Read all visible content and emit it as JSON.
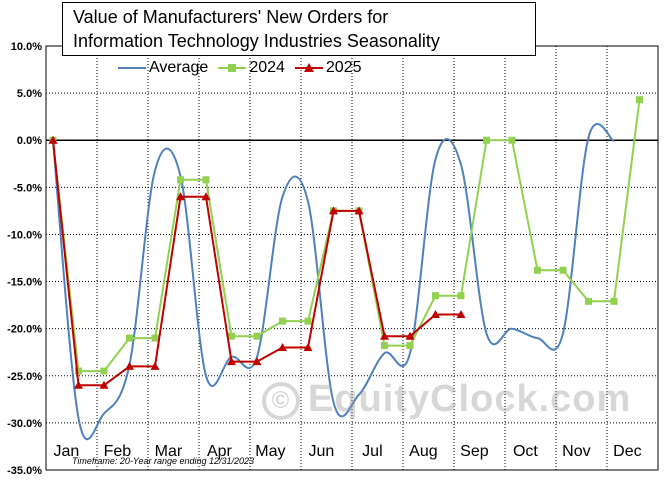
{
  "chart_data": {
    "type": "line",
    "title_lines": [
      "Value of Manufacturers'  New Orders for",
      "Information Technology Industries Seasonality"
    ],
    "categories": [
      "Jan",
      "Feb",
      "Mar",
      "Apr",
      "May",
      "Jun",
      "Jul",
      "Aug",
      "Sep",
      "Oct",
      "Nov",
      "Dec"
    ],
    "y_ticks": [
      "10.0%",
      "5.0%",
      "0.0%",
      "-5.0%",
      "-10.0%",
      "-15.0%",
      "-20.0%",
      "-25.0%",
      "-30.0%",
      "-35.0%"
    ],
    "ylim": [
      -35,
      10
    ],
    "grid": true,
    "legend_position": "top",
    "footnote": "Timeframe: 20-Year range ending 12/31/2023",
    "watermark": "EquityClock.com",
    "series": [
      {
        "name": "Average",
        "color": "#4f81bd",
        "x": [
          0,
          0.5,
          1.0,
          1.5,
          2.0,
          2.5,
          3.0,
          3.5,
          4.0,
          4.5,
          5.0,
          5.5,
          6.0,
          6.5,
          7.0,
          7.5,
          8.0,
          8.5,
          9.0,
          9.5,
          10.0,
          10.5,
          11.0,
          11.5
        ],
        "values": [
          0,
          -29.5,
          -29.0,
          -23.8,
          -3.2,
          -3.8,
          -25.0,
          -23.0,
          -23.0,
          -6.0,
          -6.5,
          -27.8,
          -27.0,
          -22.6,
          -22.6,
          -2.0,
          -2.6,
          -20.5,
          -20.0,
          -21.0,
          -20.5,
          0.3,
          -0.1,
          null
        ]
      },
      {
        "name": "2024",
        "color": "#92d050",
        "x": [
          0,
          0.5,
          1.0,
          1.5,
          2.0,
          2.5,
          3.0,
          3.5,
          4.0,
          4.5,
          5.0,
          5.5,
          6.0,
          6.5,
          7.0,
          7.5,
          8.0,
          8.5,
          9.0,
          9.5,
          10.0,
          10.5,
          11.0,
          11.5
        ],
        "values": [
          0,
          -24.5,
          -24.5,
          -21.0,
          -21.0,
          -4.2,
          -4.2,
          -20.8,
          -20.8,
          -19.2,
          -19.2,
          -7.5,
          -7.5,
          -21.8,
          -21.8,
          -16.5,
          -16.5,
          0,
          0,
          -13.8,
          -13.8,
          -17.1,
          -17.1,
          4.3
        ]
      },
      {
        "name": "2025",
        "color": "#c00000",
        "x": [
          0,
          0.5,
          1.0,
          1.5,
          2.0,
          2.5,
          3.0,
          3.5,
          4.0,
          4.5,
          5.0,
          5.5,
          6.0,
          6.5,
          7.0,
          7.5,
          8.0
        ],
        "values": [
          0,
          -26.0,
          -26.0,
          -24.0,
          -24.0,
          -6.0,
          -6.0,
          -23.5,
          -23.5,
          -22.0,
          -22.0,
          -7.5,
          -7.5,
          -20.8,
          -20.8,
          -18.5,
          -18.5
        ]
      }
    ]
  }
}
